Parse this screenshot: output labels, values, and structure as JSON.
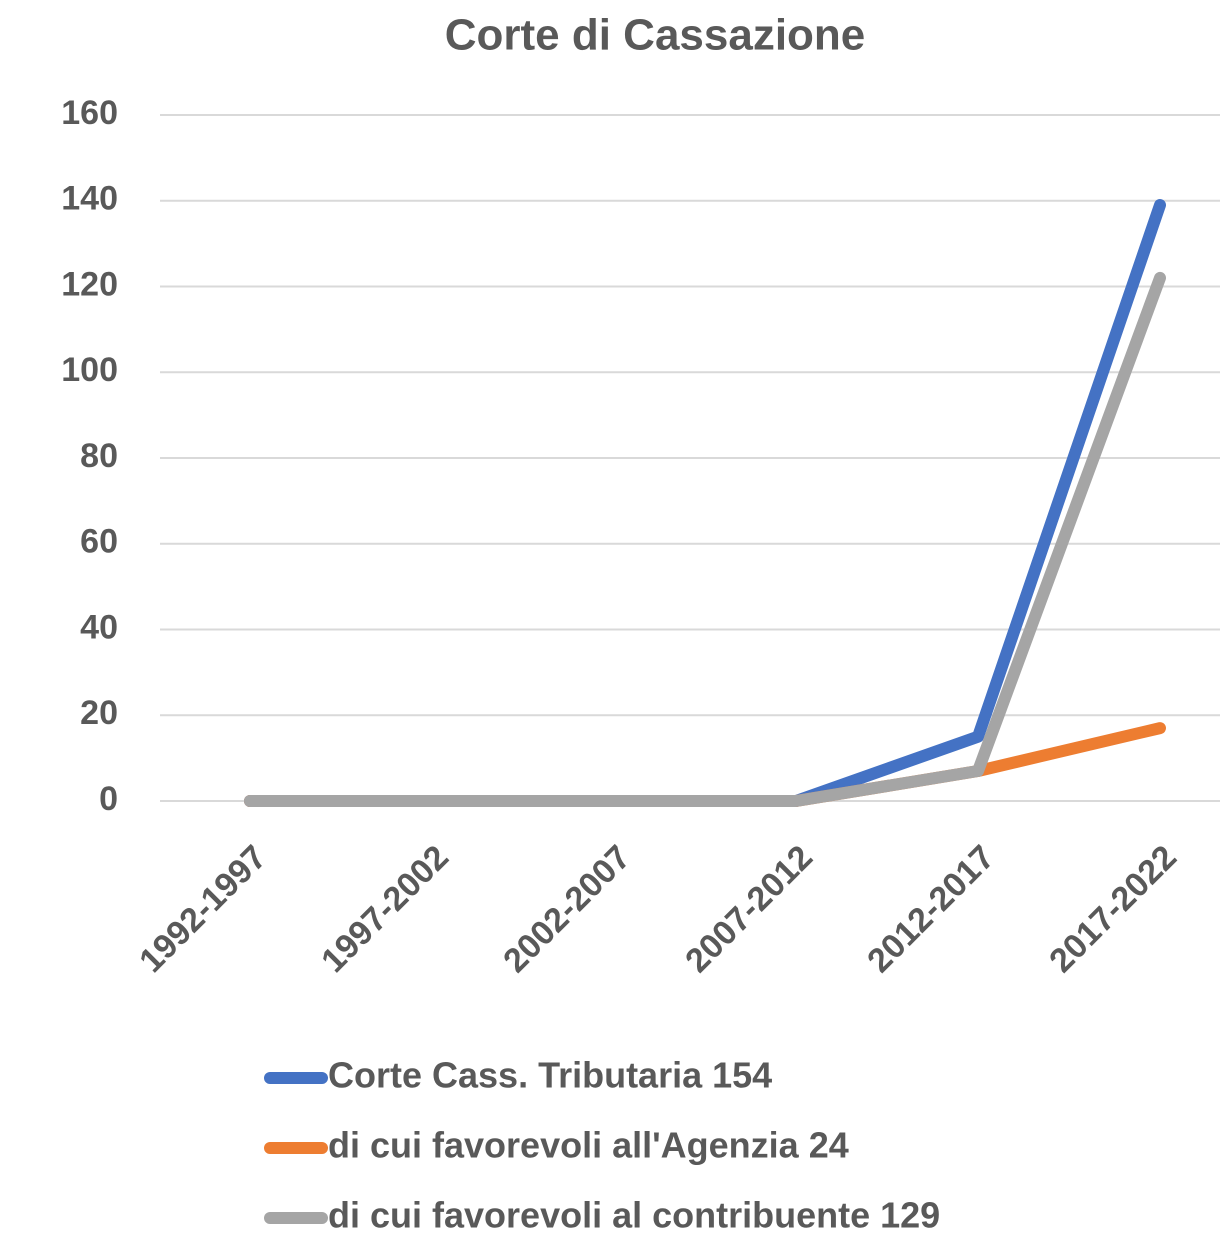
{
  "chart_data": {
    "type": "line",
    "title": "Corte di Cassazione",
    "categories": [
      "1992-1997",
      "1997-2002",
      "2002-2007",
      "2007-2012",
      "2012-2017",
      "2017-2022"
    ],
    "series": [
      {
        "name": "Corte Cass. Tributaria 154",
        "color": "#4472c4",
        "values": [
          0,
          0,
          0,
          0,
          15,
          139
        ]
      },
      {
        "name": "di cui favorevoli all'Agenzia 24",
        "color": "#ed7d31",
        "values": [
          0,
          0,
          0,
          0,
          7,
          17
        ]
      },
      {
        "name": "di cui favorevoli al contribuente 129",
        "color": "#a5a5a5",
        "values": [
          0,
          0,
          0,
          0,
          7,
          122
        ]
      }
    ],
    "ylim": [
      0,
      160
    ],
    "yticks": [
      0,
      20,
      40,
      60,
      80,
      100,
      120,
      140,
      160
    ],
    "grid": true,
    "legend": "bottom"
  }
}
